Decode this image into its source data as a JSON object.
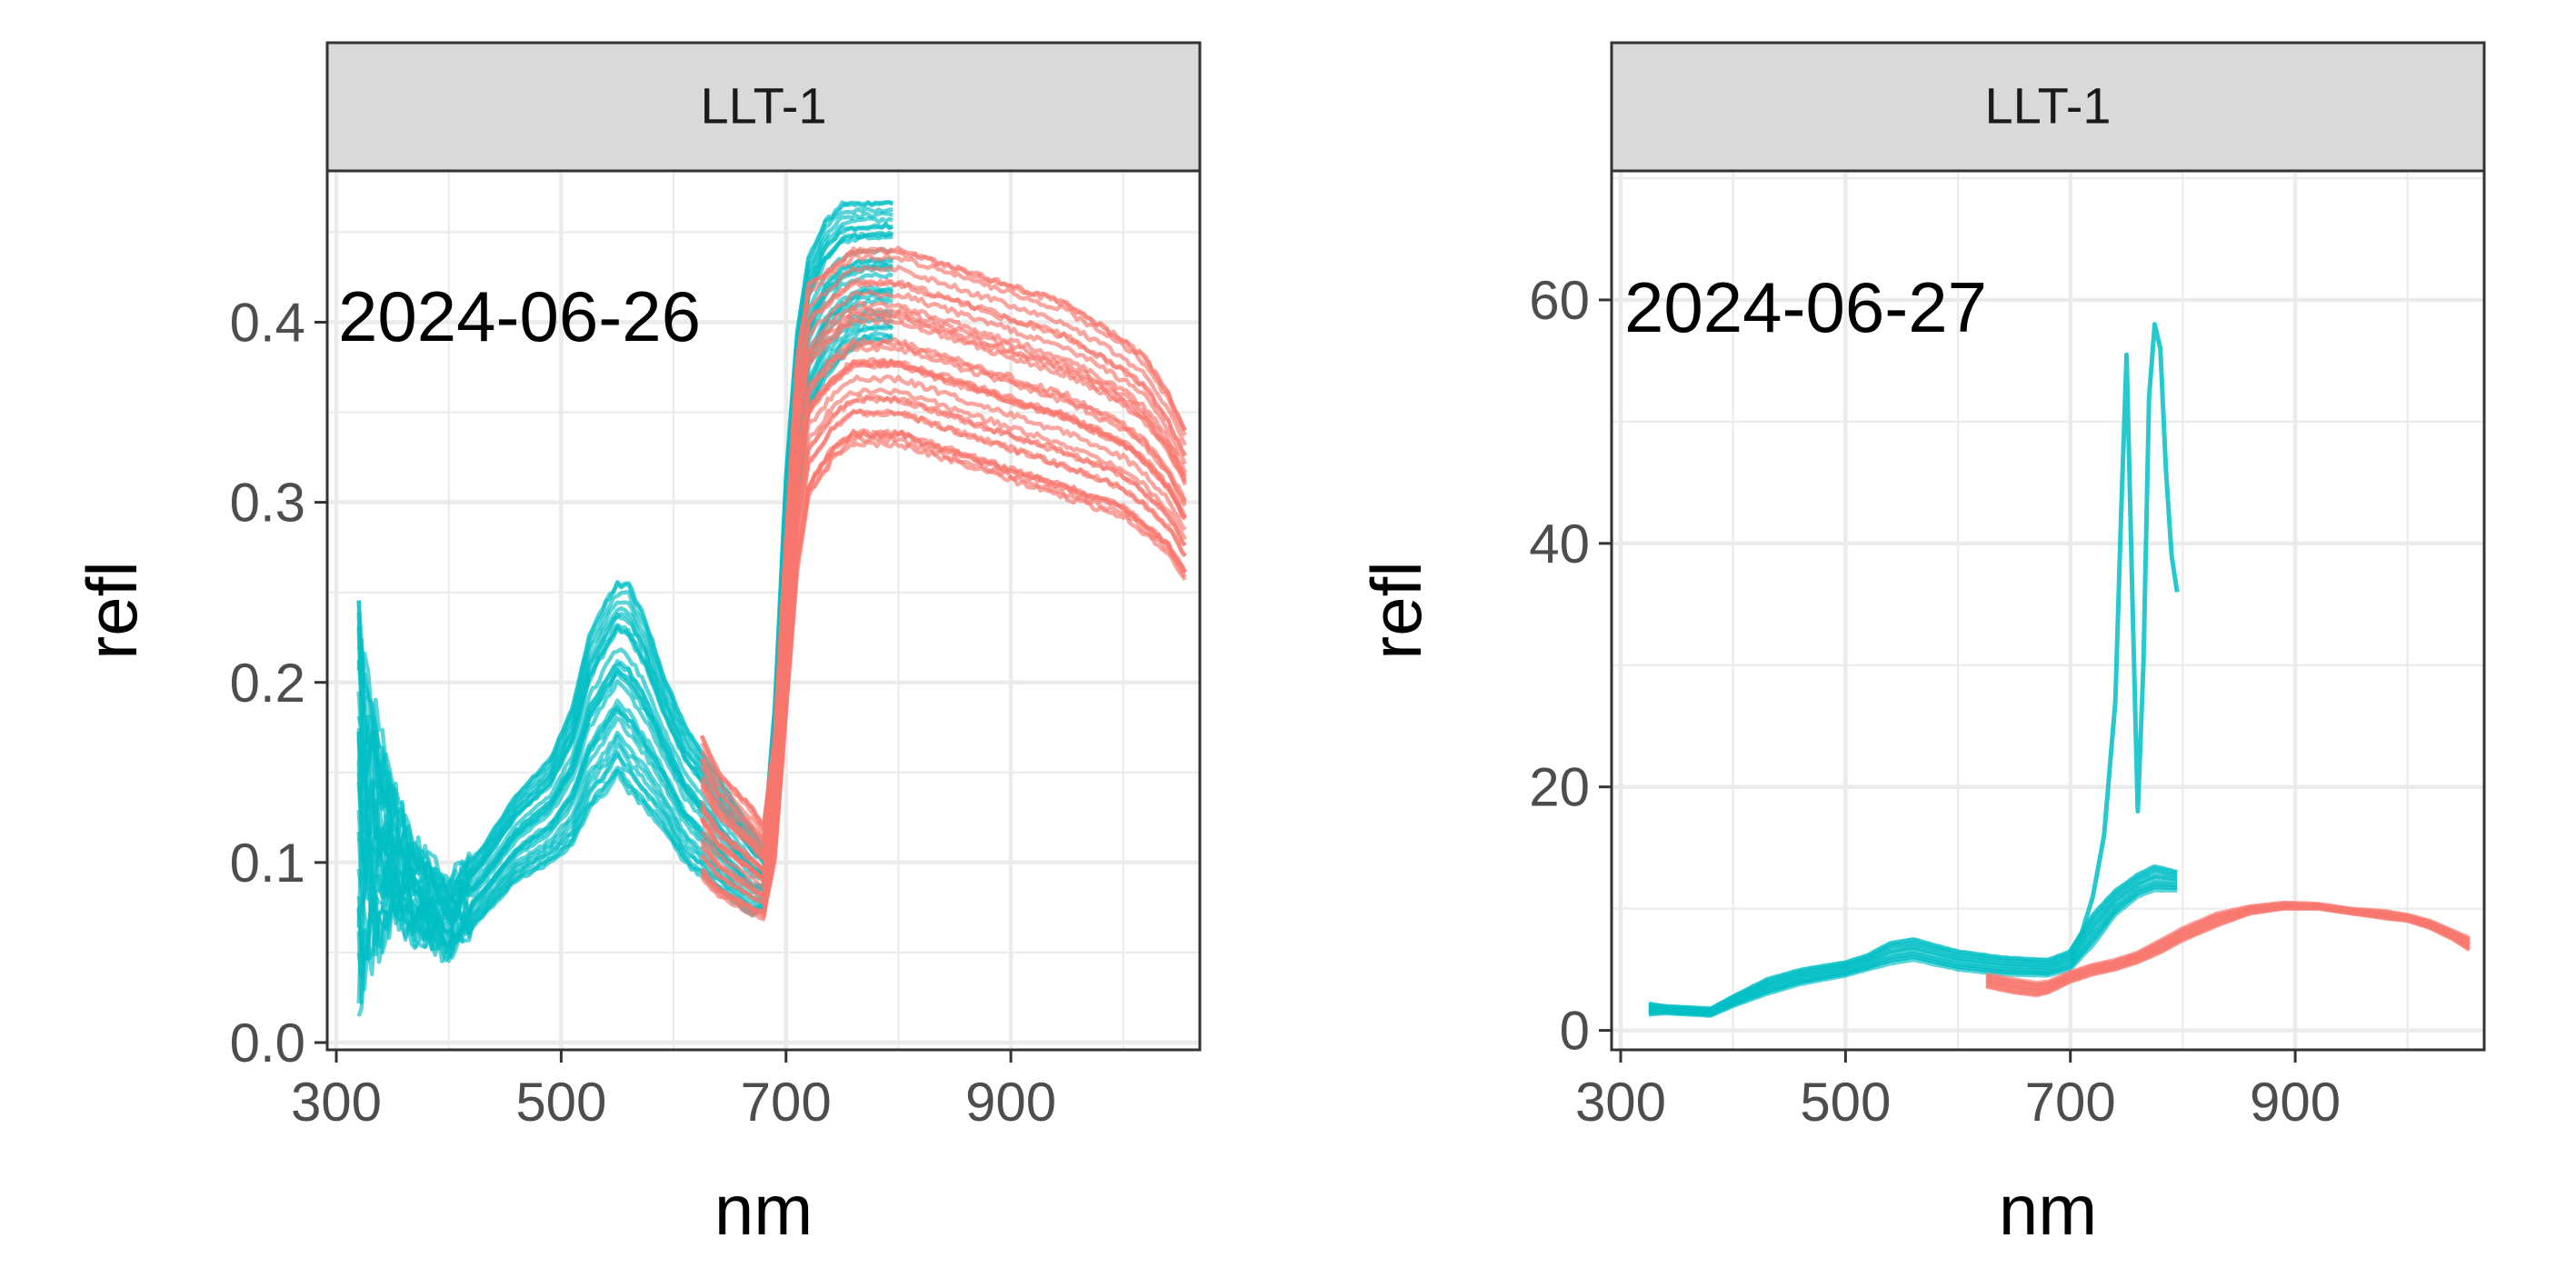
{
  "chart_data": [
    {
      "type": "line",
      "facet_label": "LLT-1",
      "annotation": "2024-06-26",
      "xlabel": "nm",
      "ylabel": "refl",
      "xlim": [
        300,
        1060
      ],
      "ylim": [
        0,
        0.48
      ],
      "x_ticks": [
        300,
        500,
        700,
        900
      ],
      "x_tick_labels": [
        "300",
        "500",
        "700",
        "900"
      ],
      "y_ticks": [
        0,
        0.1,
        0.2,
        0.3,
        0.4
      ],
      "y_tick_labels": [
        "0.0",
        "0.1",
        "0.2",
        "0.3",
        "0.4"
      ],
      "grid": true,
      "legend": "none",
      "series": [
        {
          "color": "#00BFC4",
          "count": 30,
          "x": [
            320,
            325,
            335,
            350,
            370,
            400,
            430,
            460,
            490,
            510,
            525,
            540,
            550,
            560,
            575,
            590,
            610,
            630,
            650,
            670,
            680,
            690,
            700,
            710,
            720,
            735,
            750,
            770,
            795
          ],
          "envelope_low": [
            0.03,
            0.05,
            0.06,
            0.07,
            0.06,
            0.05,
            0.07,
            0.09,
            0.1,
            0.11,
            0.13,
            0.14,
            0.15,
            0.14,
            0.13,
            0.12,
            0.1,
            0.09,
            0.08,
            0.07,
            0.075,
            0.12,
            0.22,
            0.3,
            0.35,
            0.37,
            0.38,
            0.39,
            0.39
          ],
          "envelope_high": [
            0.26,
            0.2,
            0.18,
            0.14,
            0.11,
            0.09,
            0.11,
            0.14,
            0.16,
            0.19,
            0.23,
            0.25,
            0.26,
            0.26,
            0.24,
            0.21,
            0.18,
            0.16,
            0.14,
            0.12,
            0.11,
            0.19,
            0.32,
            0.4,
            0.44,
            0.46,
            0.47,
            0.47,
            0.47
          ]
        },
        {
          "color": "#F8766D",
          "count": 30,
          "x": [
            625,
            640,
            655,
            670,
            680,
            690,
            700,
            710,
            720,
            740,
            760,
            790,
            800,
            850,
            900,
            950,
            1000,
            1020,
            1040,
            1055
          ],
          "envelope_low": [
            0.09,
            0.08,
            0.075,
            0.07,
            0.068,
            0.1,
            0.18,
            0.26,
            0.3,
            0.32,
            0.33,
            0.33,
            0.33,
            0.32,
            0.31,
            0.3,
            0.29,
            0.28,
            0.27,
            0.255
          ],
          "envelope_high": [
            0.17,
            0.15,
            0.14,
            0.13,
            0.12,
            0.17,
            0.28,
            0.38,
            0.42,
            0.43,
            0.44,
            0.44,
            0.44,
            0.43,
            0.42,
            0.41,
            0.39,
            0.38,
            0.36,
            0.34
          ]
        }
      ]
    },
    {
      "type": "line",
      "facet_label": "LLT-1",
      "annotation": "2024-06-27",
      "xlabel": "nm",
      "ylabel": "refl",
      "xlim": [
        300,
        1060
      ],
      "ylim": [
        -1,
        70
      ],
      "x_ticks": [
        300,
        500,
        700,
        900
      ],
      "x_tick_labels": [
        "300",
        "500",
        "700",
        "900"
      ],
      "y_ticks": [
        0,
        20,
        40,
        60
      ],
      "y_tick_labels": [
        "0",
        "20",
        "40",
        "60"
      ],
      "grid": true,
      "legend": "none",
      "series": [
        {
          "color": "#00BFC4",
          "count": 12,
          "x": [
            325,
            340,
            360,
            380,
            400,
            430,
            460,
            500,
            520,
            540,
            560,
            580,
            600,
            640,
            680,
            700,
            720,
            740,
            760,
            775,
            795
          ],
          "envelope_low": [
            1.3,
            1.4,
            1.3,
            1.2,
            2.0,
            3.0,
            3.8,
            4.5,
            5.0,
            5.5,
            5.8,
            5.4,
            5.0,
            4.6,
            4.5,
            5.0,
            7.0,
            9.5,
            11.0,
            11.5,
            11.5
          ],
          "envelope_high": [
            2.2,
            2.0,
            1.9,
            1.8,
            2.8,
            4.2,
            5.0,
            5.6,
            6.2,
            7.2,
            7.5,
            7.0,
            6.5,
            6.0,
            5.8,
            6.5,
            9.5,
            11.5,
            12.8,
            13.5,
            13.0
          ]
        },
        {
          "color": "#00BFC4",
          "count": 1,
          "x": [
            700,
            710,
            720,
            730,
            740,
            745,
            750,
            755,
            760,
            765,
            770,
            775,
            780,
            785,
            790,
            795
          ],
          "y": [
            6.5,
            8.0,
            11.0,
            16.0,
            27.0,
            42.0,
            55.5,
            36.0,
            18.0,
            30.0,
            52.0,
            58.0,
            56.0,
            46.0,
            39.0,
            36.0
          ]
        },
        {
          "color": "#F8766D",
          "count": 10,
          "x": [
            625,
            650,
            670,
            680,
            700,
            720,
            740,
            760,
            780,
            800,
            830,
            860,
            890,
            920,
            950,
            980,
            1000,
            1020,
            1040,
            1055
          ],
          "envelope_low": [
            3.6,
            3.1,
            2.9,
            3.1,
            4.0,
            4.6,
            5.0,
            5.6,
            6.4,
            7.4,
            8.6,
            9.6,
            10.0,
            10.0,
            9.6,
            9.2,
            9.0,
            8.4,
            7.5,
            6.6
          ],
          "envelope_high": [
            4.6,
            4.2,
            3.9,
            4.0,
            4.8,
            5.4,
            5.8,
            6.4,
            7.4,
            8.4,
            9.6,
            10.2,
            10.5,
            10.4,
            10.0,
            9.8,
            9.5,
            9.0,
            8.2,
            7.6
          ]
        }
      ]
    }
  ]
}
